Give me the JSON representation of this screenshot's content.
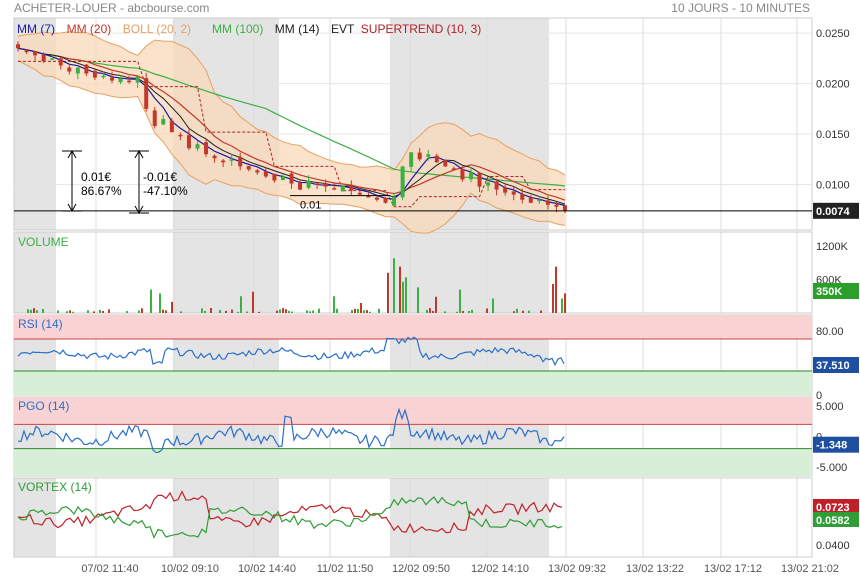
{
  "header": {
    "title": "ACHETER-LOUER - abcbourse.com",
    "period": "10 JOURS - 10 MINUTES"
  },
  "colors": {
    "mm7": "#1a1aa6",
    "mm20": "#c0392b",
    "boll": "#e8a060",
    "boll_fill": "#f8d9b8",
    "mm100": "#3cb043",
    "mm14": "#222222",
    "supertrend": "#b0202a",
    "candle_up": "#3cb043",
    "candle_down": "#c0392b",
    "rsi_line": "#2a6fc9",
    "pgo_line": "#2a6fc9",
    "vortex_plus": "#2e9e35",
    "vortex_minus": "#c0202a",
    "band_red": "#f9d3d3",
    "band_green": "#d6efd6",
    "shade": "#e4e4e4"
  },
  "legend": [
    {
      "label": "MM (7)",
      "color": "#1a1aa6"
    },
    {
      "label": "MM (20)",
      "color": "#c0392b"
    },
    {
      "label": "BOLL (20, 2)",
      "color": "#e8a060"
    },
    {
      "label": "MM (100)",
      "color": "#3cb043"
    },
    {
      "label": "MM (14)",
      "color": "#222222"
    },
    {
      "label": "EVT",
      "color": "#222222"
    },
    {
      "label": "SUPERTREND (10, 3)",
      "color": "#b0202a"
    }
  ],
  "annotations": {
    "left_change_value": "0.01€",
    "left_change_pct": "86.67%",
    "right_change_value": "-0.01€",
    "right_change_pct": "-47.10%",
    "level_label": "0.01"
  },
  "panels": {
    "volume_title": "VOLUME",
    "rsi_title": "RSI (14)",
    "pgo_title": "PGO (14)",
    "vortex_title": "VORTEX (14)"
  },
  "chart_data": {
    "type": "line",
    "price": {
      "yticks": [
        "0.0250",
        "0.0200",
        "0.0150",
        "0.0100"
      ],
      "ytick_values": [
        0.025,
        0.02,
        0.015,
        0.01
      ],
      "ylim": [
        0.0055,
        0.0265
      ],
      "last_value": "0.0074",
      "last": 0.0074,
      "series_close": [
        0.0235,
        0.0232,
        0.0228,
        0.0222,
        0.0225,
        0.0218,
        0.0212,
        0.0216,
        0.021,
        0.0206,
        0.0208,
        0.0203,
        0.0205,
        0.0202,
        0.0207,
        0.0175,
        0.0158,
        0.0165,
        0.0152,
        0.0148,
        0.0136,
        0.014,
        0.013,
        0.0126,
        0.0122,
        0.0125,
        0.0118,
        0.0115,
        0.0112,
        0.0108,
        0.0104,
        0.0108,
        0.0101,
        0.0095,
        0.0104,
        0.01,
        0.0098,
        0.0096,
        0.0099,
        0.0094,
        0.009,
        0.0088,
        0.0085,
        0.0082,
        0.0088,
        0.0118,
        0.0132,
        0.0125,
        0.013,
        0.0122,
        0.0118,
        0.0115,
        0.0105,
        0.0112,
        0.0098,
        0.0102,
        0.0095,
        0.0092,
        0.009,
        0.0085,
        0.0082,
        0.0085,
        0.008,
        0.0078,
        0.0074
      ]
    },
    "volume": {
      "yticks": [
        "1200K",
        "600K"
      ],
      "ytick_values": [
        1200,
        600
      ],
      "ymax": 1450,
      "last_value": "350K",
      "last": 350
    },
    "rsi": {
      "yticks": [
        "80.00",
        "0"
      ],
      "ytick_values": [
        80,
        0
      ],
      "bands": {
        "upper": 70,
        "lower": 30
      },
      "ylim": [
        0,
        100
      ],
      "last_value": "37.510",
      "last": 37.51
    },
    "pgo": {
      "yticks": [
        "5.000",
        "0",
        "-5.000"
      ],
      "ytick_values": [
        5,
        0,
        -5
      ],
      "bands": {
        "upper": 2,
        "lower": -2
      },
      "ylim": [
        -6.5,
        6.5
      ],
      "last_value": "-1.348",
      "last": -1.348
    },
    "vortex": {
      "yticks": [
        "0.0400"
      ],
      "ytick_values": [
        0.04
      ],
      "ylim": [
        0.03,
        0.095
      ],
      "last_minus_value": "0.0723",
      "last_minus": 0.0723,
      "last_plus_value": "0.0582",
      "last_plus": 0.0582
    },
    "x_labels": [
      "07/02 11:40",
      "10/02 09:10",
      "10/02 14:40",
      "11/02 11:50",
      "12/02 09:50",
      "12/02 14:10",
      "13/02 09:32",
      "13/02 13:22",
      "13/02 17:12",
      "13/02 21:02"
    ]
  }
}
